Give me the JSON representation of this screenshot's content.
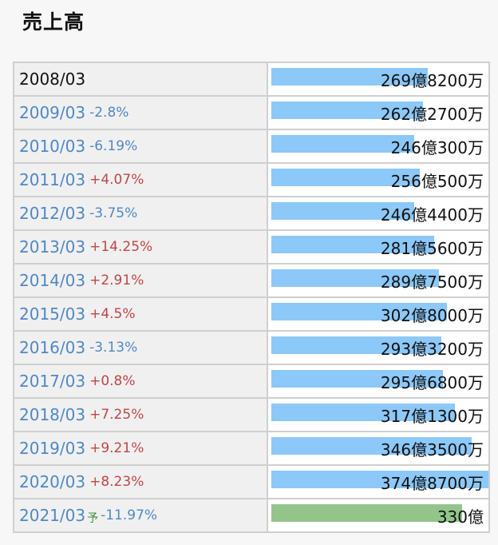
{
  "header": {
    "title": "売上高"
  },
  "chart_data": {
    "type": "bar",
    "orientation": "horizontal",
    "max_value_oku": 374.87,
    "unit_major": "億",
    "unit_minor": "万",
    "rows": [
      {
        "year": "2008/03",
        "yoy": "",
        "yoy_dir": "",
        "value_oku": 269.82,
        "value_label": "269億8200万",
        "estimate": false,
        "est_mark": ""
      },
      {
        "year": "2009/03",
        "yoy": "-2.8%",
        "yoy_dir": "down",
        "value_oku": 262.27,
        "value_label": "262億2700万",
        "estimate": false,
        "est_mark": ""
      },
      {
        "year": "2010/03",
        "yoy": "-6.19%",
        "yoy_dir": "down",
        "value_oku": 246.03,
        "value_label": "246億300万",
        "estimate": false,
        "est_mark": ""
      },
      {
        "year": "2011/03",
        "yoy": "+4.07%",
        "yoy_dir": "up",
        "value_oku": 256.05,
        "value_label": "256億500万",
        "estimate": false,
        "est_mark": ""
      },
      {
        "year": "2012/03",
        "yoy": "-3.75%",
        "yoy_dir": "down",
        "value_oku": 246.44,
        "value_label": "246億4400万",
        "estimate": false,
        "est_mark": ""
      },
      {
        "year": "2013/03",
        "yoy": "+14.25%",
        "yoy_dir": "up",
        "value_oku": 281.56,
        "value_label": "281億5600万",
        "estimate": false,
        "est_mark": ""
      },
      {
        "year": "2014/03",
        "yoy": "+2.91%",
        "yoy_dir": "up",
        "value_oku": 289.75,
        "value_label": "289億7500万",
        "estimate": false,
        "est_mark": ""
      },
      {
        "year": "2015/03",
        "yoy": "+4.5%",
        "yoy_dir": "up",
        "value_oku": 302.8,
        "value_label": "302億8000万",
        "estimate": false,
        "est_mark": ""
      },
      {
        "year": "2016/03",
        "yoy": "-3.13%",
        "yoy_dir": "down",
        "value_oku": 293.32,
        "value_label": "293億3200万",
        "estimate": false,
        "est_mark": ""
      },
      {
        "year": "2017/03",
        "yoy": "+0.8%",
        "yoy_dir": "up",
        "value_oku": 295.68,
        "value_label": "295億6800万",
        "estimate": false,
        "est_mark": ""
      },
      {
        "year": "2018/03",
        "yoy": "+7.25%",
        "yoy_dir": "up",
        "value_oku": 317.13,
        "value_label": "317億1300万",
        "estimate": false,
        "est_mark": ""
      },
      {
        "year": "2019/03",
        "yoy": "+9.21%",
        "yoy_dir": "up",
        "value_oku": 346.35,
        "value_label": "346億3500万",
        "estimate": false,
        "est_mark": ""
      },
      {
        "year": "2020/03",
        "yoy": "+8.23%",
        "yoy_dir": "up",
        "value_oku": 374.87,
        "value_label": "374億8700万",
        "estimate": false,
        "est_mark": ""
      },
      {
        "year": "2021/03",
        "yoy": "-11.97%",
        "yoy_dir": "down",
        "value_oku": 330,
        "value_label": "330億",
        "estimate": true,
        "est_mark": "予"
      }
    ]
  },
  "colors": {
    "bar_actual": "#8cc8f8",
    "bar_estimate": "#93c58b",
    "up": "#c04747",
    "down": "#4f88c6"
  }
}
